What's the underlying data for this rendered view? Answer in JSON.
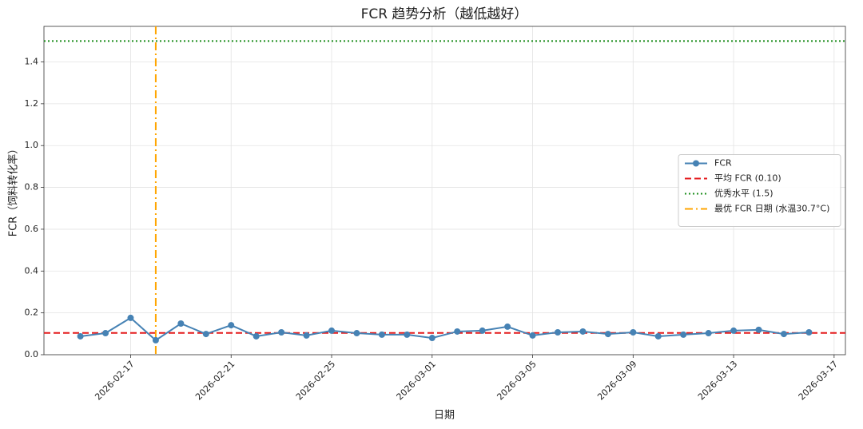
{
  "chart_data": {
    "type": "line",
    "title": "FCR 趋势分析（越低越好）",
    "x_label": "日期",
    "y_label": "FCR（饲料转化率）",
    "x": [
      "2026-02-15",
      "2026-02-16",
      "2026-02-17",
      "2026-02-18",
      "2026-02-19",
      "2026-02-20",
      "2026-02-21",
      "2026-02-22",
      "2026-02-23",
      "2026-02-24",
      "2026-02-25",
      "2026-02-26",
      "2026-02-27",
      "2026-02-28",
      "2026-03-01",
      "2026-03-02",
      "2026-03-03",
      "2026-03-04",
      "2026-03-05",
      "2026-03-06",
      "2026-03-07",
      "2026-03-08",
      "2026-03-09",
      "2026-03-10",
      "2026-03-11",
      "2026-03-12",
      "2026-03-13",
      "2026-03-14",
      "2026-03-15",
      "2026-03-16"
    ],
    "series": [
      {
        "name": "FCR",
        "color": "#4682b4",
        "values": [
          0.088,
          0.103,
          0.176,
          0.069,
          0.149,
          0.099,
          0.141,
          0.088,
          0.107,
          0.092,
          0.115,
          0.103,
          0.096,
          0.096,
          0.08,
          0.111,
          0.115,
          0.134,
          0.092,
          0.107,
          0.111,
          0.099,
          0.107,
          0.088,
          0.096,
          0.103,
          0.115,
          0.119,
          0.099,
          0.107
        ]
      }
    ],
    "reference_lines": [
      {
        "name": "平均 FCR (0.10)",
        "value": 0.104,
        "color": "#e41a1c",
        "style": "dashed"
      },
      {
        "name": "优秀水平 (1.5)",
        "value": 1.5,
        "color": "#1a8c1a",
        "style": "dotted"
      },
      {
        "name": "最优 FCR 日期 (水温30.7°C)",
        "x": "2026-02-18",
        "color": "#ffa500",
        "style": "dashdot"
      }
    ],
    "xlim": [
      "2026-02-13T13:12:00Z",
      "2026-03-17T10:48:00Z"
    ],
    "xticks": [
      "2026-02-17",
      "2026-02-21",
      "2026-02-25",
      "2026-03-01",
      "2026-03-05",
      "2026-03-09",
      "2026-03-13",
      "2026-03-17"
    ],
    "ylim": [
      0,
      1.57
    ],
    "yticks": [
      {
        "value": 0,
        "label": "0.0"
      },
      0.2,
      0.4,
      0.6,
      0.8,
      {
        "value": 1,
        "label": "1.0"
      },
      1.2,
      1.4
    ],
    "grid": true,
    "legend": "center right"
  }
}
